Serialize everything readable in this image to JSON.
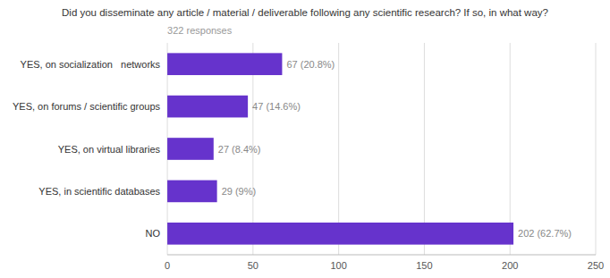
{
  "chart_data": {
    "type": "bar",
    "orientation": "horizontal",
    "title": "Did you disseminate any article / material / deliverable following any scientific research? If so, in what way?",
    "subtitle": "322 responses",
    "categories": [
      "NO",
      "YES, in scientific databases",
      "YES, on virtual libraries",
      "YES, on forums / scientific groups",
      "YES, on socialization   networks"
    ],
    "values": [
      202,
      29,
      27,
      47,
      67
    ],
    "value_labels": [
      "202 (62.7%)",
      "29 (9%)",
      "27 (8.4%)",
      "47 (14.6%)",
      "67 (20.8%)"
    ],
    "data_labels": true,
    "color": "#6633cc",
    "xlim": [
      0,
      250
    ],
    "xticks": [
      0,
      50,
      100,
      150,
      200,
      250
    ],
    "grid": true
  }
}
